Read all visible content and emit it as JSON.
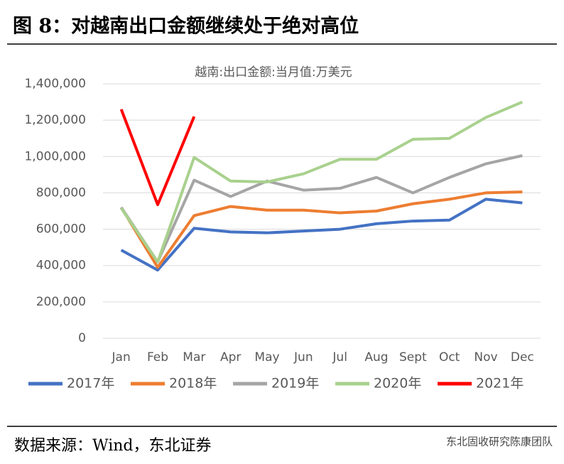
{
  "figure_title": "图 8：对越南出口金额继续处于绝对高位",
  "chart_data": {
    "type": "line",
    "title": "越南:出口金额:当月值:万美元",
    "categories": [
      "Jan",
      "Feb",
      "Mar",
      "Apr",
      "May",
      "Jun",
      "Jul",
      "Aug",
      "Sept",
      "Oct",
      "Nov",
      "Dec"
    ],
    "series": [
      {
        "name": "2017年",
        "color": "#4472c4",
        "values": [
          485000,
          375000,
          605000,
          585000,
          580000,
          590000,
          600000,
          630000,
          645000,
          650000,
          765000,
          745000
        ]
      },
      {
        "name": "2018年",
        "color": "#ed7d31",
        "values": [
          720000,
          390000,
          675000,
          725000,
          705000,
          705000,
          690000,
          700000,
          740000,
          765000,
          800000,
          805000
        ]
      },
      {
        "name": "2019年",
        "color": "#a5a5a5",
        "values": [
          720000,
          420000,
          870000,
          780000,
          865000,
          815000,
          825000,
          885000,
          800000,
          885000,
          960000,
          1005000
        ]
      },
      {
        "name": "2020年",
        "color": "#a9d18e",
        "values": [
          715000,
          420000,
          995000,
          865000,
          860000,
          905000,
          985000,
          985000,
          1095000,
          1100000,
          1215000,
          1300000
        ]
      },
      {
        "name": "2021年",
        "color": "#ff0000",
        "values": [
          1260000,
          735000,
          1220000,
          null,
          null,
          null,
          null,
          null,
          null,
          null,
          null,
          null
        ]
      }
    ],
    "ylim": [
      0,
      1400000
    ],
    "yticks": [
      0,
      {
        "value": 200000,
        "label": "200,000"
      },
      {
        "value": 400000,
        "label": "400,000"
      },
      {
        "value": 600000,
        "label": "600,000"
      },
      {
        "value": 800000,
        "label": "800,000"
      },
      {
        "value": 1000000,
        "label": "1,000,000"
      },
      {
        "value": 1200000,
        "label": "1,200,000"
      },
      {
        "value": 1400000,
        "label": "1,400,000"
      }
    ],
    "grid": true,
    "legend": "bottom"
  },
  "source": "数据来源：Wind，东北证券",
  "watermark": "东北固收研究陈康团队"
}
